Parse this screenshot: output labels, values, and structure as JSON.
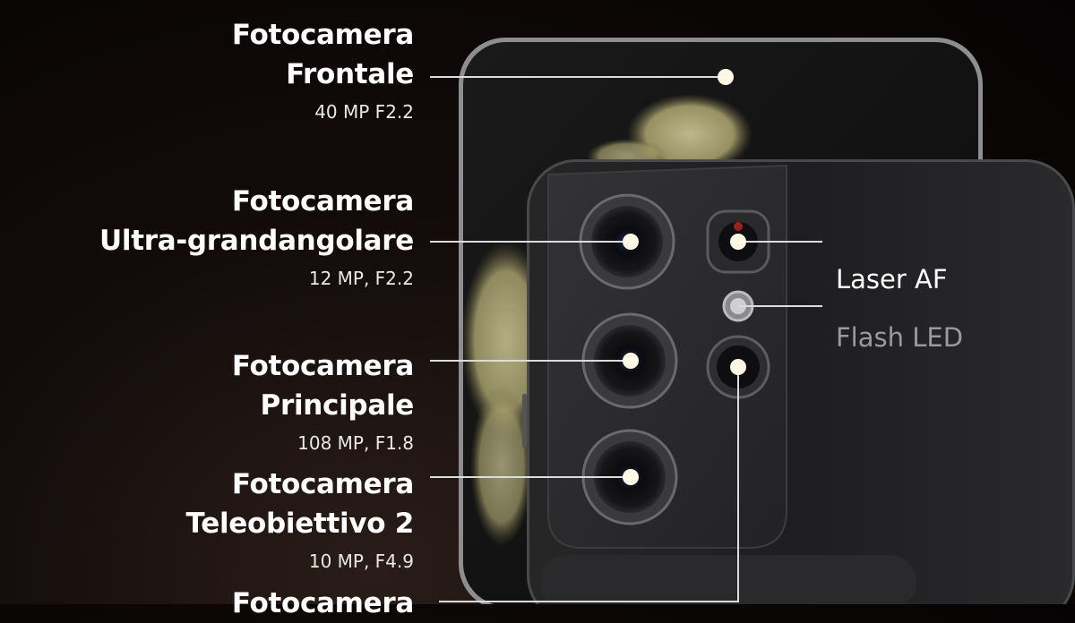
{
  "callouts": {
    "front": {
      "title_line1": "Fotocamera",
      "title_line2": "Frontale",
      "spec": "40 MP F2.2"
    },
    "ultrawide": {
      "title_line1": "Fotocamera",
      "title_line2": "Ultra-grandangolare",
      "spec": "12 MP, F2.2"
    },
    "main": {
      "title_line1": "Fotocamera",
      "title_line2": "Principale",
      "spec": "108 MP, F1.8"
    },
    "tele2": {
      "title_line1": "Fotocamera",
      "title_line2": "Teleobiettivo 2",
      "spec": "10 MP, F4.9"
    },
    "cutoff": {
      "title_line1": "Fotocamera"
    }
  },
  "right_labels": {
    "laser_af": "Laser AF",
    "flash_led": "Flash LED"
  },
  "colors": {
    "background": "#0a0606",
    "phone_body": "#1c1c1e",
    "camera_module": "#2b2b2d",
    "wallpaper_accent": "#c8c08a",
    "marker": "#fff8e6",
    "flash_label": "#9a9a9a"
  }
}
